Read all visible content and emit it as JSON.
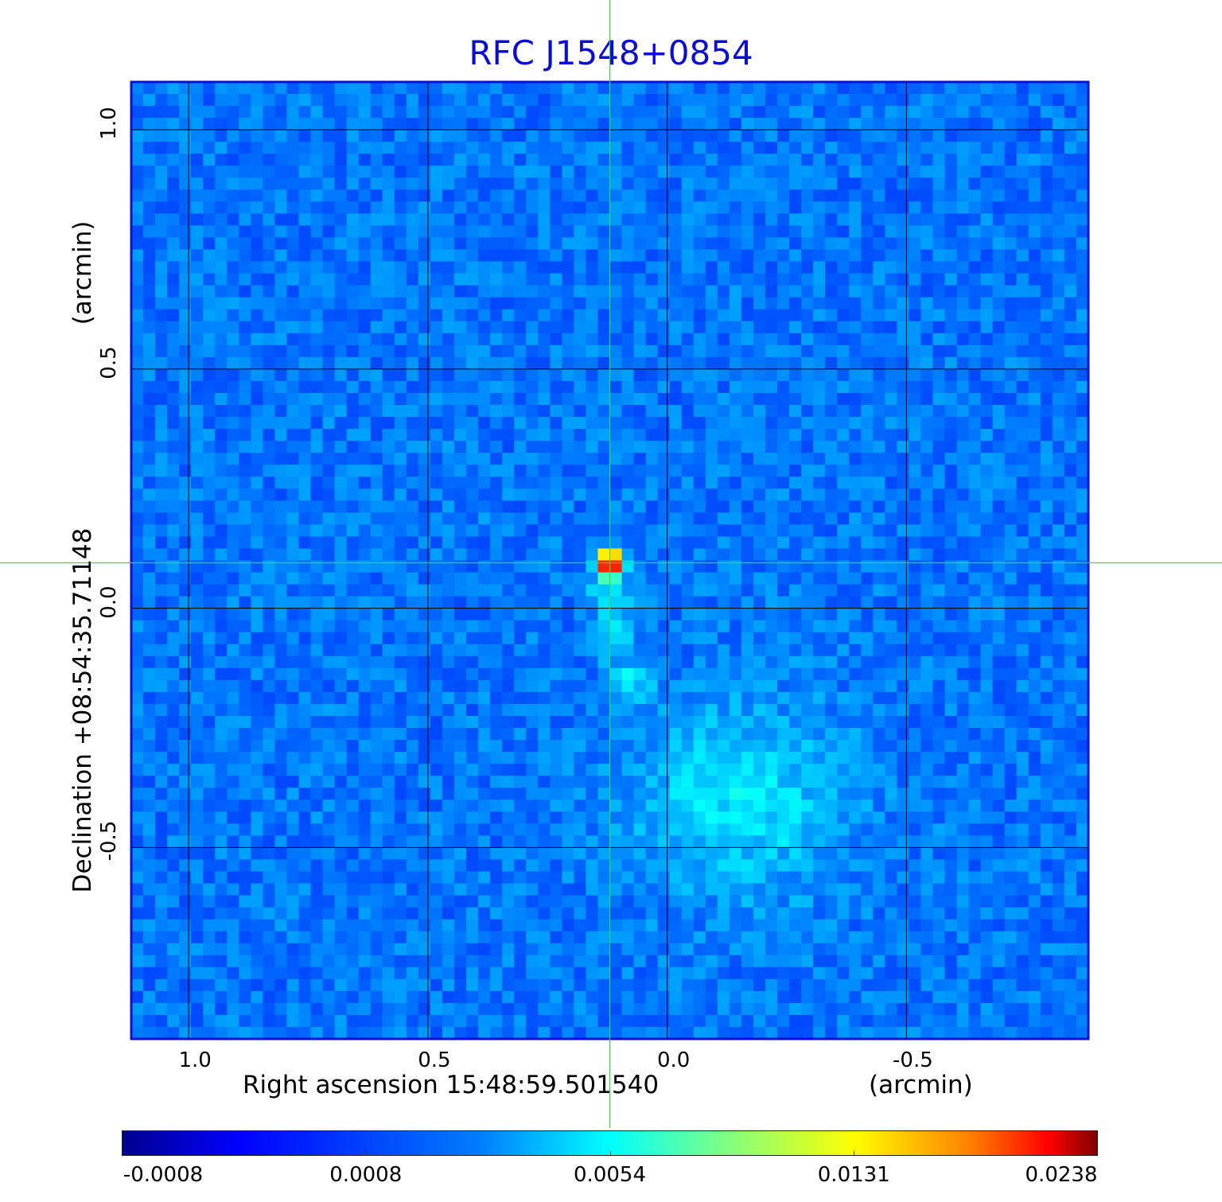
{
  "chart_data": {
    "type": "heatmap",
    "title": "RFC J1548+0854",
    "xlabel": "Right ascension  15:48:59.501540",
    "xunit": "(arcmin)",
    "ylabel": "Declination  +08:54:35.71148",
    "yunit": "(arcmin)",
    "xlim": [
      1.12,
      -0.88
    ],
    "ylim": [
      -0.9,
      1.1
    ],
    "x_ticks": [
      "1.0",
      "0.5",
      "0.0",
      "-0.5"
    ],
    "x_tick_values": [
      1.0,
      0.5,
      0.0,
      -0.5
    ],
    "y_ticks": [
      "1.0",
      "0.5",
      "0.0",
      "-0.5"
    ],
    "y_tick_values": [
      1.0,
      0.5,
      0.0,
      -0.5
    ],
    "grid": true,
    "marker_crosshair": {
      "x": 0.12,
      "y": 0.095
    },
    "colorbar": {
      "colormap": "jet",
      "tick_labels": [
        "-0.0008",
        "0.0008",
        "0.0054",
        "0.0131",
        "0.0238"
      ],
      "tick_fractions": [
        0.0,
        0.25,
        0.5,
        0.75,
        1.0
      ]
    },
    "features": [
      {
        "type": "point_source",
        "x": 0.12,
        "y": 0.095,
        "peak": 0.0238
      },
      {
        "type": "jet",
        "x": [
          0.12,
          0.11,
          0.08
        ],
        "y": [
          0.04,
          -0.05,
          -0.15
        ],
        "level": 0.002
      },
      {
        "type": "diffuse_lobe",
        "x": -0.15,
        "y": -0.4,
        "level": 0.0015
      }
    ],
    "colors": {
      "title": "#0b0bd9",
      "grid": "#000000",
      "crosshair": "#33dd33",
      "frame": "#1010d0"
    }
  }
}
